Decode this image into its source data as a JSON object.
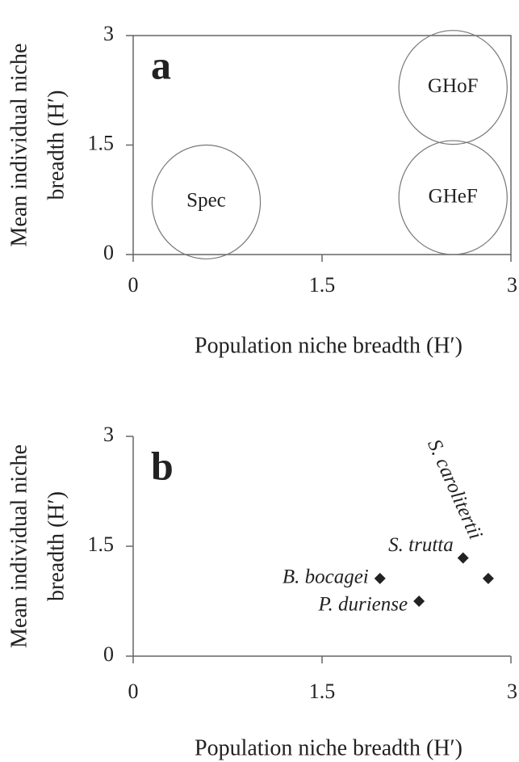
{
  "chart_data": [
    {
      "type": "regions",
      "panel_label": "a",
      "xlabel": "Population niche breadth (H′)",
      "ylabel": [
        "Mean individual niche",
        "breadth (H′)"
      ],
      "xlim": [
        0,
        3
      ],
      "ylim": [
        0,
        3
      ],
      "xticks": [
        0,
        1.5,
        3
      ],
      "yticks": [
        0,
        1.5,
        3
      ],
      "frame": true,
      "regions": [
        {
          "label": "Spec",
          "x": 0.58,
          "y": 0.72,
          "rx": 0.43,
          "ry": 0.78
        },
        {
          "label": "GHoF",
          "x": 2.54,
          "y": 2.29,
          "rx": 0.43,
          "ry": 0.78
        },
        {
          "label": "GHeF",
          "x": 2.54,
          "y": 0.78,
          "rx": 0.43,
          "ry": 0.78
        }
      ]
    },
    {
      "type": "scatter",
      "panel_label": "b",
      "xlabel": "Population niche breadth (H′)",
      "ylabel": [
        "Mean individual niche",
        "breadth (H′)"
      ],
      "xlim": [
        0,
        3
      ],
      "ylim": [
        0,
        3
      ],
      "xticks": [
        0,
        1.5,
        3
      ],
      "yticks": [
        0,
        1.5,
        3
      ],
      "frame": false,
      "color": "#222222",
      "labels": [
        "B. bocagei",
        "P. duriense",
        "S. trutta",
        "S. carolitertii"
      ],
      "x": [
        1.96,
        2.27,
        2.62,
        2.82
      ],
      "y": [
        1.06,
        0.75,
        1.34,
        1.06
      ]
    }
  ]
}
